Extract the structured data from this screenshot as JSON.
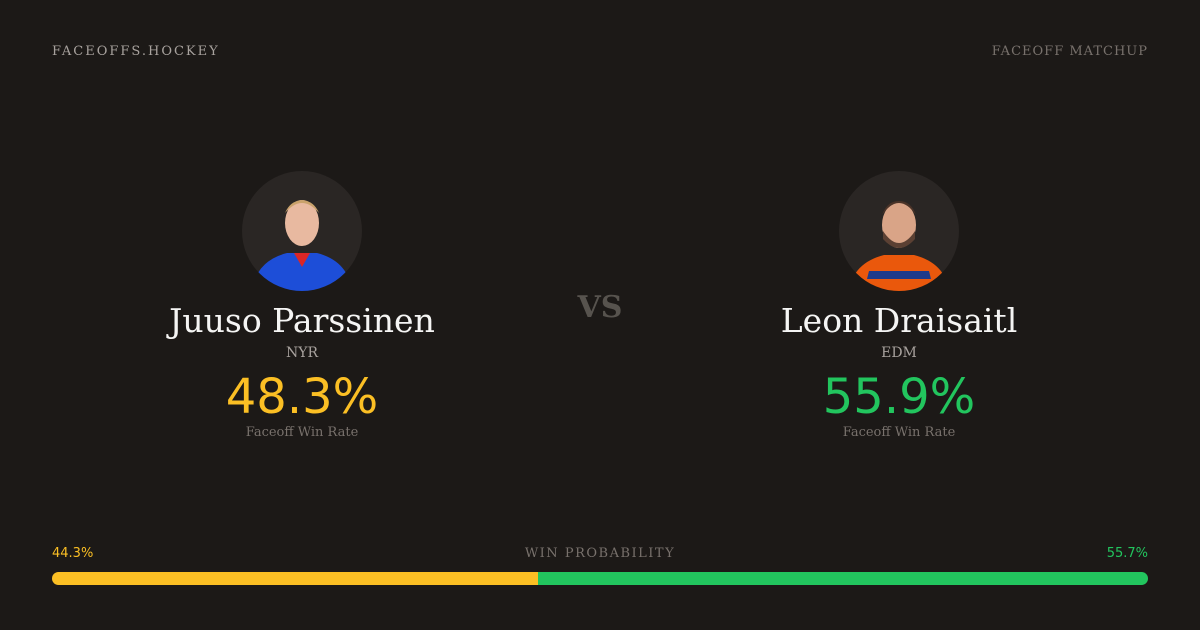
{
  "header": {
    "brand": "FACEOFFS.HOCKEY",
    "label": "FACEOFF MATCHUP"
  },
  "players": [
    {
      "name": "Juuso Parssinen",
      "team": "NYR",
      "rate": "48.3%",
      "caption": "Faceoff Win Rate",
      "color": "#fbbf24"
    },
    {
      "name": "Leon Draisaitl",
      "team": "EDM",
      "rate": "55.9%",
      "caption": "Faceoff Win Rate",
      "color": "#22c55e"
    }
  ],
  "vs": "VS",
  "probability": {
    "title": "WIN PROBABILITY",
    "values": [
      44.3,
      55.7
    ],
    "value_labels": [
      "44.3%",
      "55.7%"
    ],
    "colors": [
      "#fbbf24",
      "#22c55e"
    ]
  }
}
